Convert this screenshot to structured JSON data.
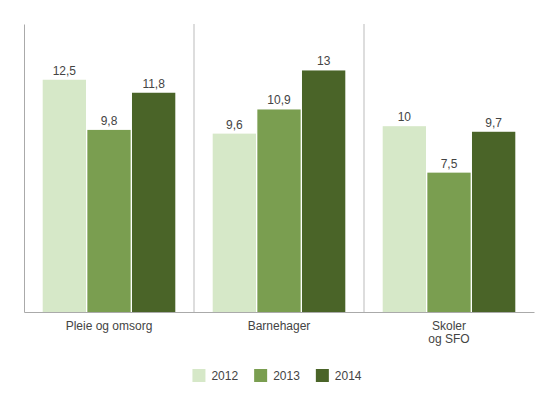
{
  "chart_data": {
    "type": "bar",
    "categories": [
      "Pleie og omsorg",
      "Barnehager",
      "Skoler\nog SFO"
    ],
    "series": [
      {
        "name": "2012",
        "color": "#d6e8c8",
        "values": [
          12.5,
          9.6,
          10.0
        ],
        "value_labels": [
          "12,5",
          "9,6",
          "10"
        ]
      },
      {
        "name": "2013",
        "color": "#7a9e50",
        "values": [
          9.8,
          10.9,
          7.5
        ],
        "value_labels": [
          "9,8",
          "10,9",
          "7,5"
        ]
      },
      {
        "name": "2014",
        "color": "#4a6428",
        "values": [
          11.8,
          13.0,
          9.7
        ],
        "value_labels": [
          "11,8",
          "13",
          "9,7"
        ]
      }
    ],
    "ylim": [
      0,
      15.5
    ],
    "grid": false,
    "legend": "bottom",
    "data_labels": true,
    "tick_labels": "x"
  }
}
